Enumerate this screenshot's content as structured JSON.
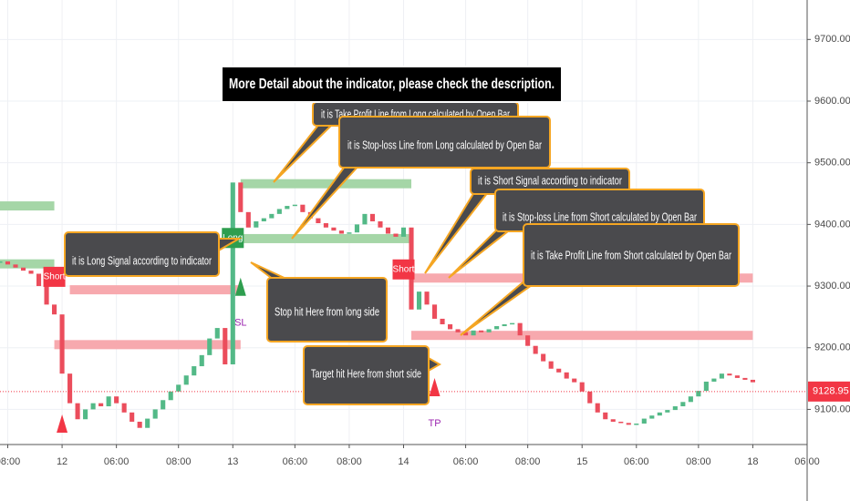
{
  "chart_data": {
    "type": "candlestick",
    "title": "More Detail about the indicator, please check the description.",
    "x": [
      0,
      1,
      2,
      3,
      4,
      5,
      6,
      7,
      8,
      9,
      10,
      11,
      12,
      13,
      14,
      15,
      16,
      17,
      18,
      19,
      20,
      21,
      22,
      23,
      24,
      25,
      26,
      27,
      28,
      29,
      30,
      31,
      32,
      33,
      34,
      35,
      36,
      37,
      38,
      39,
      40,
      41,
      42,
      43,
      44,
      45,
      46,
      47,
      48,
      49,
      50,
      51,
      52,
      53,
      54,
      55,
      56,
      57,
      58,
      59,
      60,
      61,
      62,
      63,
      64,
      65,
      66,
      67,
      68,
      69,
      70,
      71,
      72,
      73,
      74,
      75,
      76,
      77,
      78,
      79,
      80,
      81,
      82,
      83,
      84,
      85,
      86,
      87,
      88,
      89,
      90,
      91,
      92,
      93,
      94,
      95,
      96,
      97
    ],
    "values": [
      9340,
      9335,
      9330,
      9325,
      9320,
      9300,
      9270,
      9254,
      9158,
      9110,
      9084,
      9100,
      9110,
      9105,
      9121,
      9110,
      9095,
      9080,
      9070,
      9085,
      9100,
      9115,
      9129,
      9140,
      9155,
      9170,
      9188,
      9215,
      9232,
      9173,
      9468,
      9420,
      9395,
      9405,
      9410,
      9417,
      9425,
      9430,
      9432,
      9420,
      9410,
      9402,
      9395,
      9390,
      9385,
      9387,
      9400,
      9417,
      9405,
      9395,
      9385,
      9380,
      9395,
      9262,
      9291,
      9270,
      9247,
      9238,
      9230,
      9225,
      9220,
      9228,
      9225,
      9230,
      9235,
      9238,
      9240,
      9220,
      9203,
      9190,
      9178,
      9166,
      9160,
      9150,
      9144,
      9129,
      9110,
      9095,
      9084,
      9080,
      9078,
      9075,
      9077,
      9085,
      9090,
      9095,
      9099,
      9105,
      9112,
      9121,
      9130,
      9145,
      9150,
      9158,
      9155,
      9151,
      9148,
      9144
    ],
    "up_color": "#53b987",
    "down_color": "#eb4d5c",
    "xlim": [
      0,
      104
    ],
    "xticks": [
      {
        "value": 1,
        "label": "08:00"
      },
      {
        "value": 8,
        "label": "12"
      },
      {
        "value": 15,
        "label": "06:00"
      },
      {
        "value": 23,
        "label": "08:00"
      },
      {
        "value": 30,
        "label": "13"
      },
      {
        "value": 38,
        "label": "06:00"
      },
      {
        "value": 45,
        "label": "08:00"
      },
      {
        "value": 52,
        "label": "14"
      },
      {
        "value": 60,
        "label": "06:00"
      },
      {
        "value": 68,
        "label": "08:00"
      },
      {
        "value": 75,
        "label": "15"
      },
      {
        "value": 82,
        "label": "06:00"
      },
      {
        "value": 90,
        "label": "08:00"
      },
      {
        "value": 97,
        "label": "18"
      },
      {
        "value": 104,
        "label": "06:00"
      }
    ],
    "ylim": [
      9043,
      9764
    ],
    "yticks": [
      {
        "value": 9100,
        "label": "9100.00"
      },
      {
        "value": 9200,
        "label": "9200.00"
      },
      {
        "value": 9300,
        "label": "9300.00"
      },
      {
        "value": 9400,
        "label": "9400.00"
      },
      {
        "value": 9500,
        "label": "9500.00"
      },
      {
        "value": 9600,
        "label": "9600.00"
      },
      {
        "value": 9700,
        "label": "9700.00"
      }
    ],
    "grid": true,
    "last_price": 9128.95,
    "last_price_color": "#f23645",
    "levels": [
      {
        "value": 9430,
        "x": [
          0,
          7
        ],
        "color": "#a5d6a7"
      },
      {
        "value": 9336,
        "x": [
          0,
          7
        ],
        "color": "#a5d6a7"
      },
      {
        "value": 9294,
        "x": [
          9,
          31
        ],
        "color": "#f7a9ae"
      },
      {
        "value": 9205,
        "x": [
          7,
          31
        ],
        "color": "#f7a9ae"
      },
      {
        "value": 9466,
        "x": [
          31,
          53
        ],
        "color": "#a5d6a7"
      },
      {
        "value": 9377,
        "x": [
          31,
          53
        ],
        "color": "#a5d6a7"
      },
      {
        "value": 9313,
        "x": [
          53,
          97
        ],
        "color": "#f7a9ae"
      },
      {
        "value": 9220,
        "x": [
          53,
          97
        ],
        "color": "#f7a9ae"
      }
    ],
    "signals": [
      {
        "label": "Short",
        "x": 7,
        "y": 9315,
        "color": "#f23645"
      },
      {
        "label": "Long",
        "x": 30,
        "y": 9378,
        "color": "#2e9e4f"
      },
      {
        "label": "Short",
        "x": 52,
        "y": 9327,
        "color": "#f23645"
      }
    ],
    "arrows": [
      {
        "x": 8,
        "y": 9077,
        "color": "#f23645"
      },
      {
        "x": 31,
        "y": 9299,
        "color": "#2e9e4f"
      },
      {
        "x": 56,
        "y": 9136,
        "color": "#f23645"
      }
    ],
    "marks": [
      {
        "label": "SL",
        "x": 31,
        "y": 9240,
        "color": "#9c27b0"
      },
      {
        "label": "TP",
        "x": 56,
        "y": 9077,
        "color": "#9c27b0"
      }
    ],
    "annotations": [
      "it is Take Profit Line from Long calculated by Open Bar",
      "it is Stop-loss Line from Long calculated by Open Bar",
      "it is Short Signal according to indicator",
      "it is Stop-loss Line from Short calculated by Open Bar",
      "it is Take Profit Line from Short calculated by Open Bar",
      "it is Long Signal according to indicator",
      "Stop hit Here from long side",
      "Target hit Here from short side"
    ]
  }
}
